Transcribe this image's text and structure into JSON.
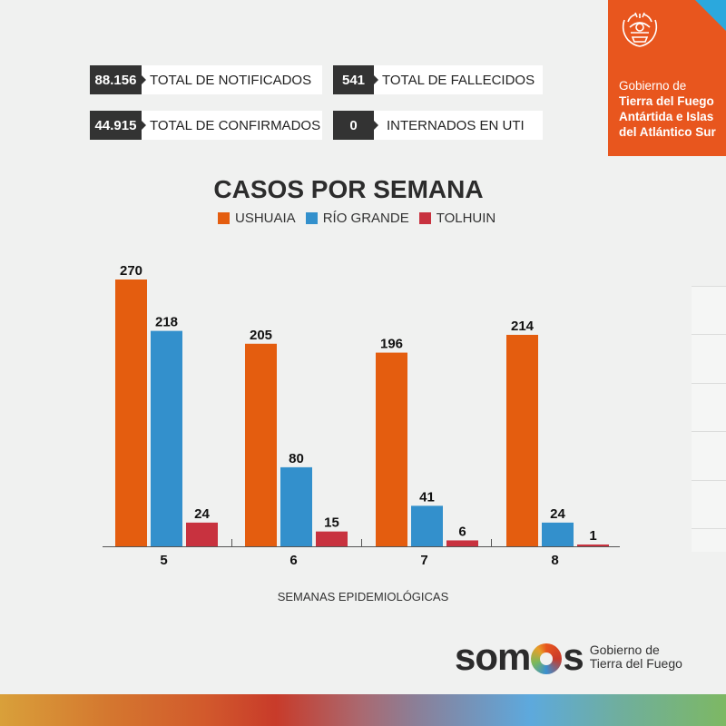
{
  "stats": [
    {
      "value": "88.156",
      "label": "TOTAL DE NOTIFICADOS"
    },
    {
      "value": "44.915",
      "label": "TOTAL DE CONFIRMADOS"
    },
    {
      "value": "541",
      "label": "TOTAL DE FALLECIDOS"
    },
    {
      "value": "0",
      "label": "INTERNADOS EN UTI"
    }
  ],
  "government": {
    "line1": "Gobierno de",
    "line2": "Tierra del Fuego",
    "line3": "Antártida e Islas",
    "line4": "del Atlántico Sur",
    "seal_icon": "provincial-seal-icon",
    "color": "#e8561e"
  },
  "footer": {
    "brand_word_pre": "som",
    "brand_word_post": "s",
    "brand_sub1": "Gobierno de",
    "brand_sub2": "Tierra del Fuego"
  },
  "chart_data": {
    "type": "bar",
    "title": "CASOS POR SEMANA",
    "xlabel": "SEMANAS EPIDEMIOLÓGICAS",
    "ylabel": "",
    "categories": [
      "5",
      "6",
      "7",
      "8"
    ],
    "series": [
      {
        "name": "USHUAIA",
        "color": "#e45d0f",
        "values": [
          270,
          205,
          196,
          214
        ]
      },
      {
        "name": "RÍO GRANDE",
        "color": "#3390cc",
        "values": [
          218,
          80,
          41,
          24
        ]
      },
      {
        "name": "TOLHUIN",
        "color": "#c8323f",
        "values": [
          24,
          15,
          6,
          1
        ]
      }
    ],
    "ylim": [
      0,
      270
    ],
    "grid": false,
    "legend": "top-center",
    "data_labels": true
  }
}
